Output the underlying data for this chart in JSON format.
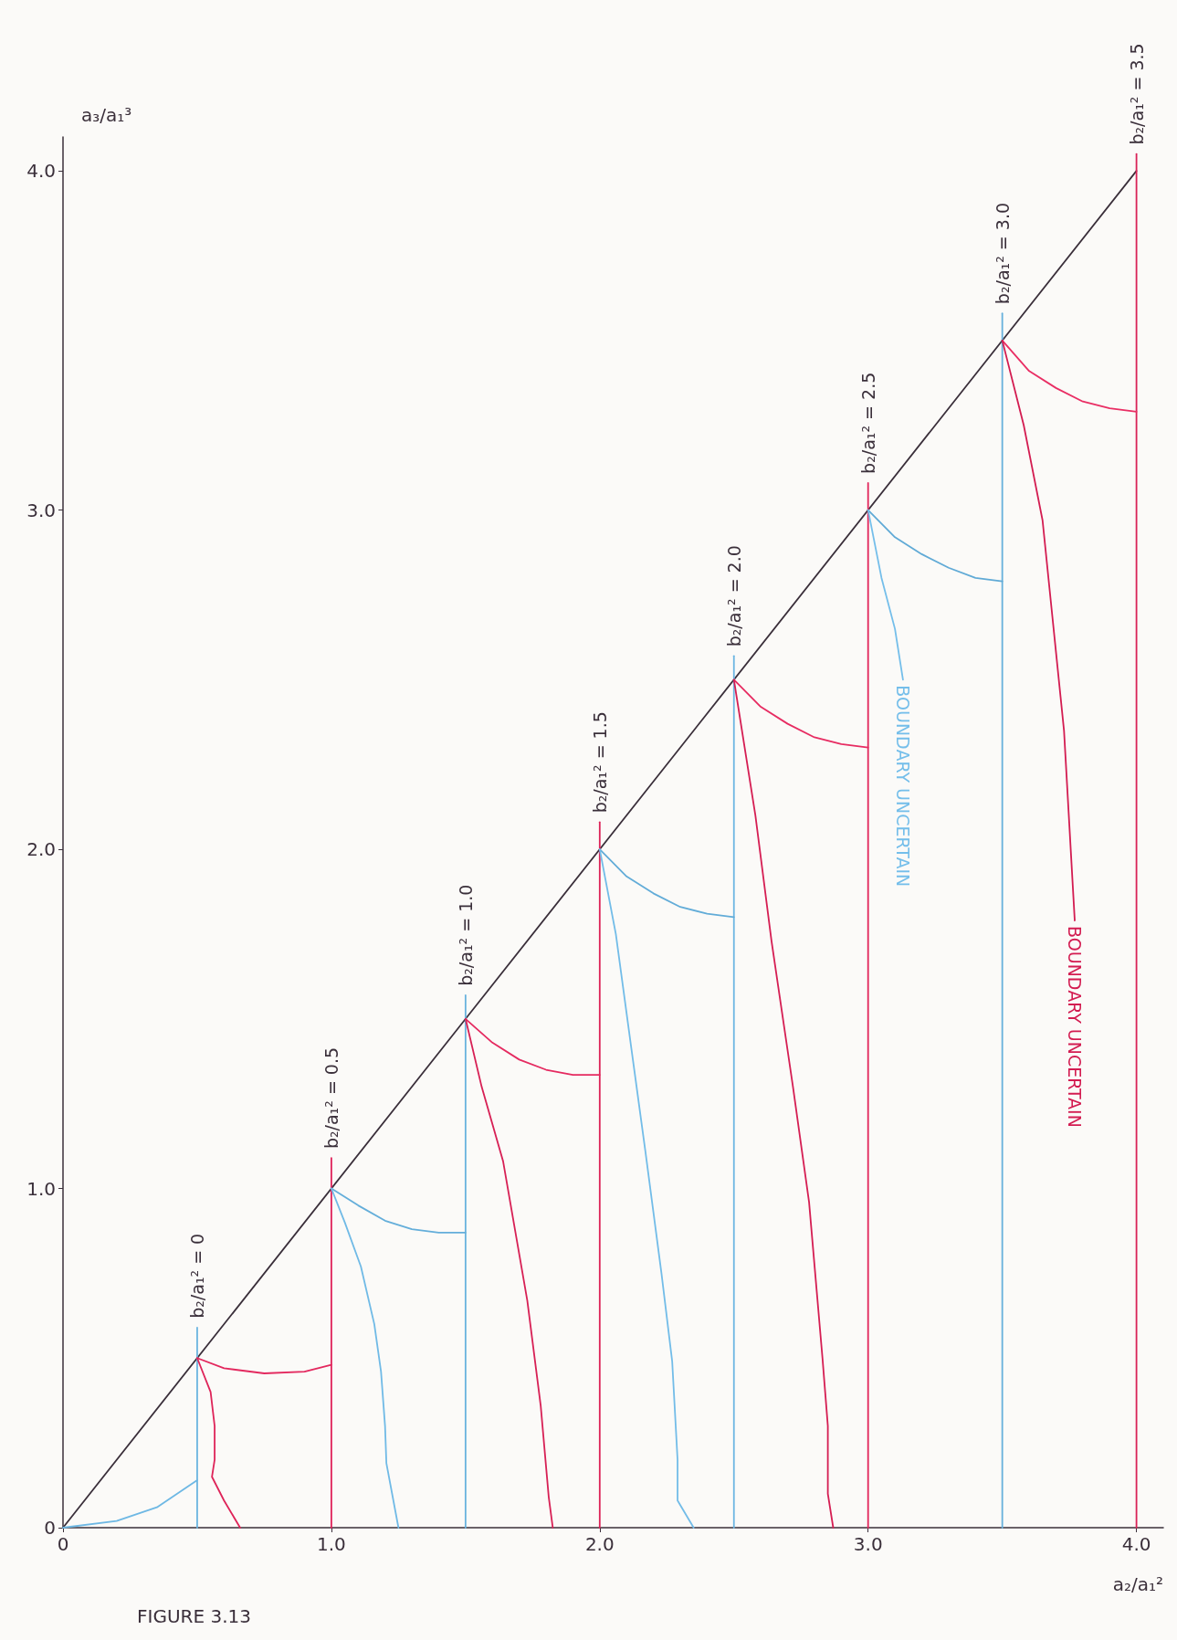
{
  "chart_data": {
    "type": "line",
    "xlabel": "a₂/a₁²",
    "ylabel": "a₃/a₁³",
    "xlim": [
      0,
      4.1
    ],
    "ylim": [
      0,
      4.1
    ],
    "xticks": [
      0,
      {
        "value": 1,
        "label": "1.0"
      },
      {
        "value": 2,
        "label": "2.0"
      },
      {
        "value": 3,
        "label": "3.0"
      },
      {
        "value": 4,
        "label": "4.0"
      }
    ],
    "yticks": [
      0,
      {
        "value": 1,
        "label": "1.0"
      },
      {
        "value": 2,
        "label": "2.0"
      },
      {
        "value": 3,
        "label": "3.0"
      },
      {
        "value": 4,
        "label": "4.0"
      }
    ],
    "line_style": "solid",
    "series": [
      {
        "color": "#3a2f3a",
        "x": [
          0,
          4
        ],
        "values": [
          0,
          4
        ]
      },
      {
        "color": "#6ab4e0",
        "x": [
          0.5,
          0.5
        ],
        "values": [
          0,
          0.59
        ]
      },
      {
        "color": "#e0245a",
        "x": [
          1,
          1
        ],
        "values": [
          0,
          1.09
        ]
      },
      {
        "color": "#68b2de",
        "x": [
          1.5,
          1.5
        ],
        "values": [
          0,
          1.57
        ]
      },
      {
        "color": "#dc2358",
        "x": [
          2,
          2
        ],
        "values": [
          0,
          2.08
        ]
      },
      {
        "color": "#6cb6e2",
        "x": [
          2.5,
          2.5
        ],
        "values": [
          0,
          2.57
        ]
      },
      {
        "color": "#e2265c",
        "x": [
          3,
          3
        ],
        "values": [
          0,
          3.08
        ]
      },
      {
        "color": "#66b0dc",
        "x": [
          3.5,
          3.5
        ],
        "values": [
          0,
          3.58
        ]
      },
      {
        "color": "#d92257",
        "x": [
          4,
          4
        ],
        "values": [
          0,
          4.05
        ]
      },
      {
        "color": "#6eb8e4",
        "x": [
          0,
          0.2,
          0.35,
          0.5
        ],
        "values": [
          0,
          0.02,
          0.06,
          0.14
        ]
      },
      {
        "color": "#e3285e",
        "x": [
          0.5,
          0.6,
          0.75,
          0.9,
          1.0
        ],
        "values": [
          0.5,
          0.47,
          0.455,
          0.46,
          0.48
        ]
      },
      {
        "color": "#de2459",
        "x": [
          0.5,
          0.55,
          0.565,
          0.565,
          0.555,
          0.6,
          0.66
        ],
        "values": [
          0.5,
          0.4,
          0.3,
          0.2,
          0.15,
          0.08,
          0
        ]
      },
      {
        "color": "#64aeda",
        "x": [
          1,
          1.1,
          1.2,
          1.3,
          1.4,
          1.5
        ],
        "values": [
          1,
          0.95,
          0.905,
          0.88,
          0.87,
          0.87
        ]
      },
      {
        "color": "#70bae6",
        "x": [
          1,
          1.05,
          1.11,
          1.16,
          1.185,
          1.2,
          1.205,
          1.25
        ],
        "values": [
          1,
          0.9,
          0.77,
          0.6,
          0.46,
          0.3,
          0.19,
          0
        ]
      },
      {
        "color": "#e52a60",
        "x": [
          1.5,
          1.6,
          1.7,
          1.8,
          1.9,
          2.0
        ],
        "values": [
          1.5,
          1.43,
          1.38,
          1.35,
          1.335,
          1.335
        ]
      },
      {
        "color": "#d72055",
        "x": [
          1.5,
          1.56,
          1.64,
          1.73,
          1.78,
          1.81,
          1.825
        ],
        "values": [
          1.5,
          1.3,
          1.08,
          0.67,
          0.36,
          0.09,
          0
        ]
      },
      {
        "color": "#62acd8",
        "x": [
          2,
          2.1,
          2.2,
          2.3,
          2.4,
          2.5
        ],
        "values": [
          2,
          1.92,
          1.87,
          1.83,
          1.81,
          1.8
        ]
      },
      {
        "color": "#72bce8",
        "x": [
          2,
          2.06,
          2.12,
          2.17,
          2.23,
          2.27,
          2.29,
          2.29,
          2.35
        ],
        "values": [
          2,
          1.75,
          1.4,
          1.11,
          0.75,
          0.49,
          0.2,
          0.08,
          0
        ]
      },
      {
        "color": "#e72c62",
        "x": [
          2.5,
          2.6,
          2.7,
          2.8,
          2.9,
          3.0
        ],
        "values": [
          2.5,
          2.42,
          2.37,
          2.33,
          2.31,
          2.3
        ]
      },
      {
        "color": "#d51e53",
        "x": [
          2.5,
          2.58,
          2.64,
          2.72,
          2.78,
          2.83,
          2.85,
          2.85,
          2.87
        ],
        "values": [
          2.5,
          2.1,
          1.73,
          1.3,
          0.96,
          0.5,
          0.3,
          0.1,
          0
        ]
      },
      {
        "color": "#60aad6",
        "x": [
          3,
          3.1,
          3.2,
          3.3,
          3.4,
          3.5
        ],
        "values": [
          3,
          2.92,
          2.87,
          2.83,
          2.8,
          2.79
        ]
      },
      {
        "color": "#74beea",
        "x": [
          3,
          3.05,
          3.1,
          3.13
        ],
        "values": [
          3,
          2.8,
          2.65,
          2.5
        ]
      },
      {
        "color": "#e92e64",
        "x": [
          3.5,
          3.6,
          3.7,
          3.8,
          3.9,
          4.0
        ],
        "values": [
          3.5,
          3.41,
          3.36,
          3.32,
          3.3,
          3.29
        ]
      },
      {
        "color": "#d31c51",
        "x": [
          3.5,
          3.58,
          3.65,
          3.73,
          3.77
        ],
        "values": [
          3.5,
          3.25,
          2.97,
          2.35,
          1.79
        ]
      }
    ],
    "annotations": [
      {
        "text": "b₂/a₁² = 0",
        "x": 0.5,
        "y": 0.59
      },
      {
        "text": "b₂/a₁² = 0.5",
        "x": 1,
        "y": 1.09
      },
      {
        "text": "b₂/a₁² = 1.0",
        "x": 1.5,
        "y": 1.57
      },
      {
        "text": "b₂/a₁² = 1.5",
        "x": 2,
        "y": 2.08
      },
      {
        "text": "b₂/a₁² = 2.0",
        "x": 2.5,
        "y": 2.57
      },
      {
        "text": "b₂/a₁² = 2.5",
        "x": 3,
        "y": 3.08
      },
      {
        "text": "b₂/a₁² = 3.0",
        "x": 3.5,
        "y": 3.58
      },
      {
        "text": "b₂/a₁² = 3.5",
        "x": 4,
        "y": 4.05
      },
      {
        "text": "BOUNDARY UNCERTAIN",
        "x": 3.13,
        "y": 2.5
      },
      {
        "text": "BOUNDARY UNCERTAIN",
        "x": 3.77,
        "y": 1.79
      },
      "FIGURE 3.13"
    ]
  }
}
